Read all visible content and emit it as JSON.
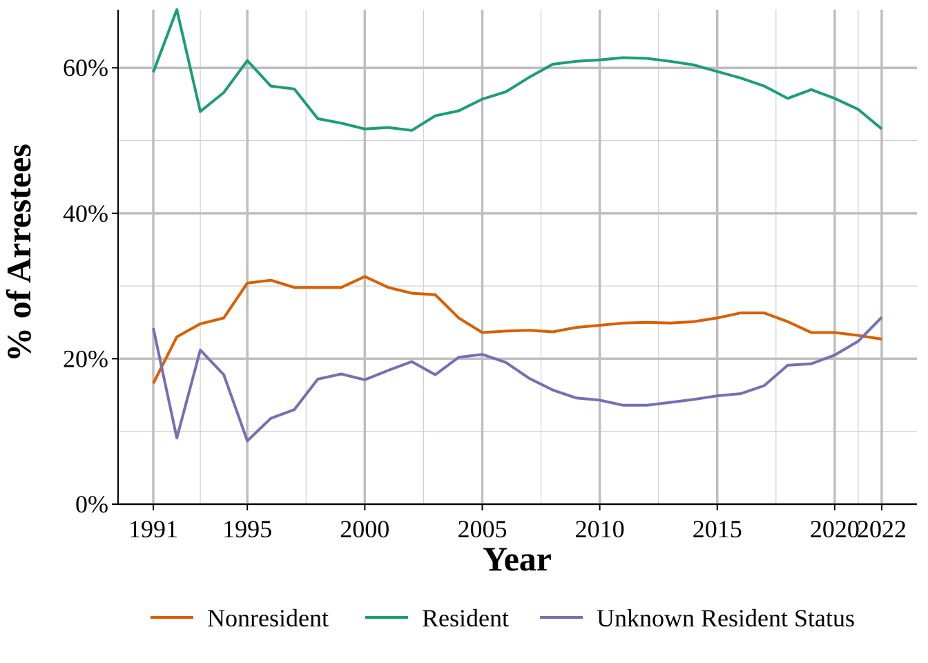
{
  "chart_data": {
    "type": "line",
    "xlabel": "Year",
    "ylabel": "% of Arrestees",
    "x_ticks": [
      1991,
      1995,
      2000,
      2005,
      2010,
      2015,
      2020,
      2022
    ],
    "x_tick_labels": [
      "1991",
      "1995",
      "2000",
      "2005",
      "2010",
      "2015",
      "2020",
      "2022"
    ],
    "y_ticks": [
      0,
      20,
      40,
      60
    ],
    "y_tick_labels": [
      "0%",
      "20%",
      "40%",
      "60%"
    ],
    "xlim": [
      1989.5,
      2023.5
    ],
    "ylim": [
      0,
      68
    ],
    "grid": true,
    "legend_position": "bottom",
    "x": [
      1991,
      1992,
      1993,
      1994,
      1995,
      1996,
      1997,
      1998,
      1999,
      2000,
      2001,
      2002,
      2003,
      2004,
      2005,
      2006,
      2007,
      2008,
      2009,
      2010,
      2011,
      2012,
      2013,
      2014,
      2015,
      2016,
      2017,
      2018,
      2019,
      2020,
      2021,
      2022
    ],
    "series": [
      {
        "name": "Nonresident",
        "color": "#D95F02",
        "values": [
          16.6,
          23.0,
          24.8,
          25.6,
          30.4,
          30.8,
          29.8,
          29.8,
          29.8,
          31.3,
          29.8,
          29.0,
          28.8,
          25.6,
          23.6,
          23.8,
          23.9,
          23.7,
          24.3,
          24.6,
          24.9,
          25.0,
          24.9,
          25.1,
          25.6,
          26.3,
          26.3,
          25.1,
          23.6,
          23.6,
          23.2,
          22.7
        ]
      },
      {
        "name": "Resident",
        "color": "#1B9E77",
        "values": [
          59.4,
          68.0,
          54.0,
          56.6,
          61.0,
          57.5,
          57.1,
          53.0,
          52.4,
          51.6,
          51.8,
          51.4,
          53.4,
          54.1,
          55.7,
          56.7,
          58.7,
          60.5,
          60.9,
          61.1,
          61.4,
          61.3,
          60.9,
          60.4,
          59.5,
          58.6,
          57.5,
          55.8,
          57.0,
          55.8,
          54.3,
          51.6
        ]
      },
      {
        "name": "Unknown Resident Status",
        "color": "#7570B3",
        "values": [
          24.2,
          9.1,
          21.2,
          17.8,
          8.7,
          11.8,
          13.0,
          17.2,
          17.9,
          17.1,
          18.4,
          19.6,
          17.8,
          20.2,
          20.6,
          19.5,
          17.3,
          15.7,
          14.6,
          14.3,
          13.6,
          13.6,
          14.0,
          14.4,
          14.9,
          15.2,
          16.3,
          19.1,
          19.3,
          20.5,
          22.4,
          25.7
        ]
      }
    ]
  }
}
